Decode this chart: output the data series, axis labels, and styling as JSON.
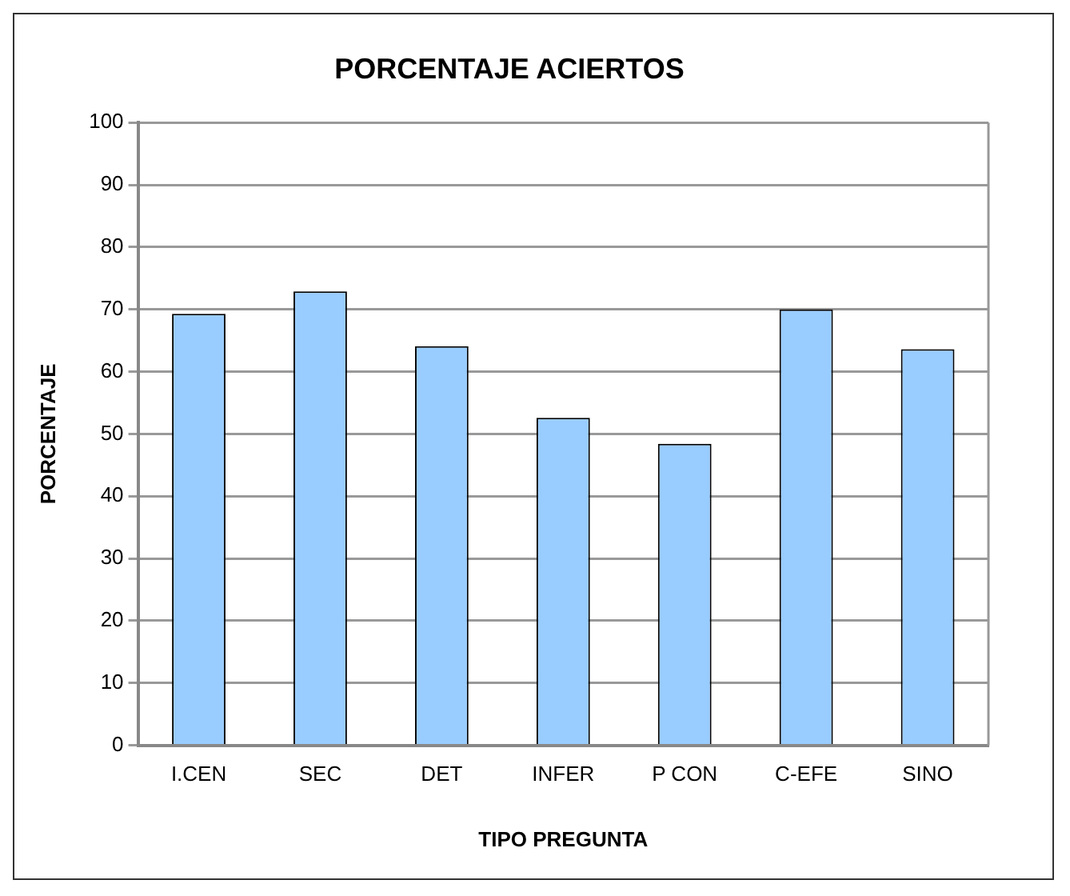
{
  "chart_data": {
    "type": "bar",
    "title": "PORCENTAJE ACIERTOS",
    "xlabel": "TIPO PREGUNTA",
    "ylabel": "PORCENTAJE",
    "categories": [
      "I.CEN",
      "SEC",
      "DET",
      "INFER",
      "P CON",
      "C-EFE",
      "SINO"
    ],
    "values": [
      69.3,
      72.9,
      64.1,
      52.6,
      48.4,
      70,
      63.6
    ],
    "color": "#99ccff",
    "ylim": [
      0,
      100
    ],
    "yticks": [
      0,
      10,
      20,
      30,
      40,
      50,
      60,
      70,
      80,
      90,
      100
    ],
    "grid": "y",
    "legend": false
  }
}
